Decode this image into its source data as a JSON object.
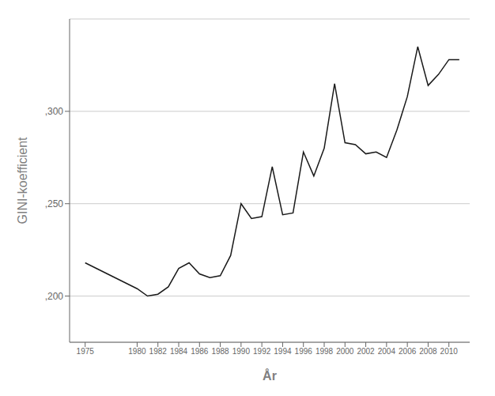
{
  "chart_data": {
    "type": "line",
    "x": [
      1975,
      1980,
      1981,
      1982,
      1983,
      1984,
      1985,
      1986,
      1987,
      1988,
      1989,
      1990,
      1991,
      1992,
      1993,
      1994,
      1995,
      1996,
      1997,
      1998,
      1999,
      2000,
      2001,
      2002,
      2003,
      2004,
      2005,
      2006,
      2007,
      2008,
      2009,
      2010,
      2011
    ],
    "values": [
      0.218,
      0.204,
      0.2,
      0.201,
      0.205,
      0.215,
      0.218,
      0.212,
      0.21,
      0.211,
      0.222,
      0.25,
      0.242,
      0.243,
      0.27,
      0.244,
      0.245,
      0.278,
      0.265,
      0.28,
      0.315,
      0.283,
      0.282,
      0.277,
      0.278,
      0.275,
      0.29,
      0.308,
      0.335,
      0.314,
      0.32,
      0.328,
      0.328
    ],
    "color": "#1a1a1a",
    "xlabel": "År",
    "ylabel": "GINI-koefficient",
    "xlim": [
      1973.5,
      2012
    ],
    "xticks": [
      1975,
      1980,
      1982,
      1984,
      1986,
      1988,
      1990,
      1992,
      1994,
      1996,
      1998,
      2000,
      2002,
      2004,
      2006,
      2008,
      2010
    ],
    "ylim": [
      0.175,
      0.35
    ],
    "yticks": [
      {
        "value": 0.2,
        "label": ",200"
      },
      {
        "value": 0.25,
        "label": ",250"
      },
      {
        "value": 0.3,
        "label": ",300"
      }
    ],
    "grid": "y"
  }
}
